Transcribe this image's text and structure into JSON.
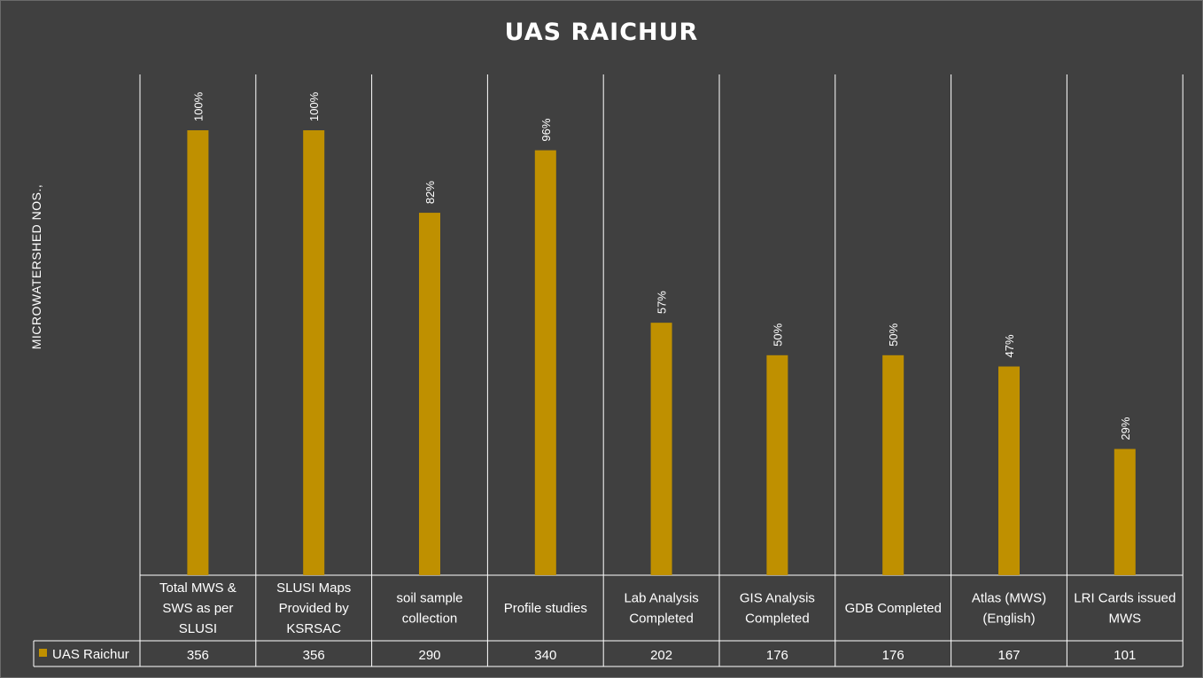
{
  "chart_data": {
    "type": "bar",
    "title": "UAS RAICHUR",
    "ylabel": "MICROWATERSHED NOS.,",
    "xlabel": "",
    "categories": [
      "Total MWS & SWS as per SLUSI",
      "SLUSI Maps Provided by KSRSAC",
      "soil sample collection",
      "Profile studies",
      "Lab Analysis Completed",
      "GIS Analysis Completed",
      "GDB Completed",
      "Atlas (MWS) (English)",
      "LRI Cards issued MWS"
    ],
    "category_lines": [
      [
        "Total MWS &",
        "SWS as per",
        "SLUSI"
      ],
      [
        "SLUSI Maps",
        "Provided by",
        "KSRSAC"
      ],
      [
        "soil sample",
        "collection"
      ],
      [
        "Profile studies"
      ],
      [
        "Lab Analysis",
        "Completed"
      ],
      [
        "GIS Analysis",
        "Completed"
      ],
      [
        "GDB Completed"
      ],
      [
        "Atlas (MWS)",
        "(English)"
      ],
      [
        "LRI Cards issued",
        "MWS"
      ]
    ],
    "series": [
      {
        "name": "UAS Raichur",
        "values": [
          356,
          356,
          290,
          340,
          202,
          176,
          176,
          167,
          101
        ],
        "labels": [
          "100%",
          "100%",
          "82%",
          "96%",
          "57%",
          "50%",
          "50%",
          "47%",
          "29%"
        ],
        "color": "#bf9000"
      }
    ],
    "ylim": [
      0,
      400
    ],
    "grid": false,
    "legend": "data-table",
    "data_table": true
  },
  "colors": {
    "background": "#404040",
    "bar": "#bf9000",
    "lines": "#ffffff",
    "text": "#ffffff"
  }
}
